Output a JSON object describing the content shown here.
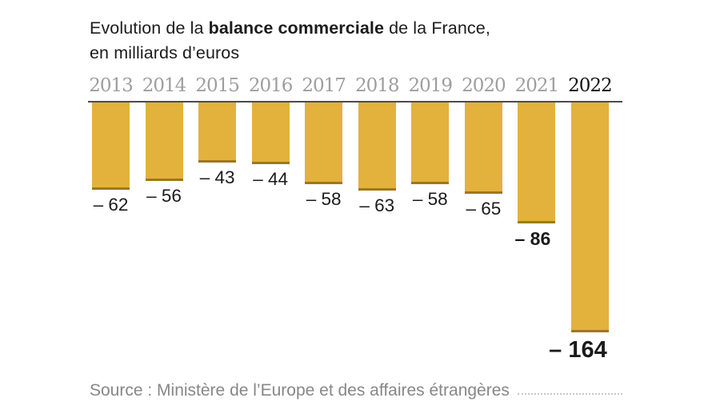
{
  "title": {
    "prefix": "Evolution de la ",
    "bold": "balance commerciale",
    "suffix": " de la France,",
    "line2": "en milliards d’euros"
  },
  "source": {
    "label": "Source : Ministère de l’Europe et des affaires étrangères"
  },
  "colors": {
    "bar": "#E2B23D",
    "bar_bottom_edge": "#A07819",
    "baseline": "#4C4C4C",
    "year_label": "#9E9E9E",
    "year_label_current": "#161616",
    "value_label": "#1B1B1B",
    "title_text": "#1C1C1C",
    "source_text": "#878787",
    "background": "#FFFFFF"
  },
  "chart_data": {
    "type": "bar",
    "title": "Evolution de la balance commerciale de la France, en milliards d’euros",
    "unit": "milliards d’euros",
    "categories": [
      "2013",
      "2014",
      "2015",
      "2016",
      "2017",
      "2018",
      "2019",
      "2020",
      "2021",
      "2022"
    ],
    "values": [
      -62,
      -56,
      -43,
      -44,
      -58,
      -63,
      -58,
      -65,
      -86,
      -164
    ],
    "labels": [
      "– 62",
      "– 56",
      "– 43",
      "– 44",
      "– 58",
      "– 63",
      "– 58",
      "– 65",
      "– 86",
      "– 164"
    ],
    "emphasis": [
      0,
      0,
      0,
      0,
      0,
      0,
      0,
      0,
      1,
      2
    ],
    "highlight_category": "2022",
    "xlabel": "",
    "ylabel": "",
    "ylim": [
      -170,
      0
    ],
    "baseline_value": 0,
    "grid": false,
    "legend": "none"
  }
}
